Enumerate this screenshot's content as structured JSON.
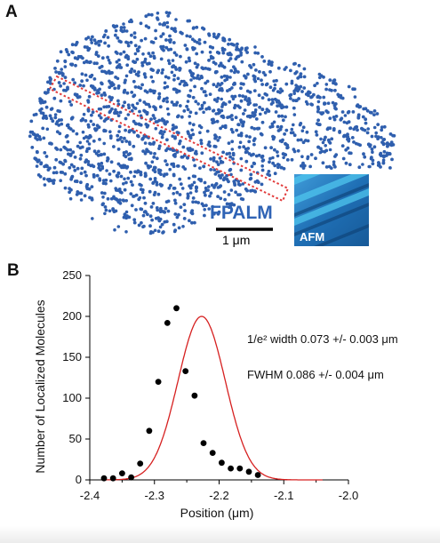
{
  "panel_a": {
    "letter": "A",
    "method_label": "FPALM",
    "scale_bar_label": "1 μm",
    "inset_label": "AFM",
    "colors": {
      "points": "#2f5fae",
      "method_label": "#2f63b5",
      "roi_box": "#e23b3b",
      "inset_bg": "#1c5f9e",
      "inset_band": "#4fc6ee"
    }
  },
  "panel_b": {
    "letter": "B",
    "annotation_width": "1/e² width 0.073 +/- 0.003 μm",
    "annotation_fwhm": "FWHM 0.086 +/- 0.004 μm"
  },
  "chart_data": {
    "type": "scatter",
    "xlabel": "Position (μm)",
    "ylabel": "Number of Localized Molecules",
    "xlim": [
      -2.4,
      -2.0
    ],
    "ylim": [
      0,
      250
    ],
    "x_ticks": [
      -2.4,
      -2.3,
      -2.2,
      -2.1,
      -2.0
    ],
    "x_tick_labels": [
      "-2.4",
      "-2.3",
      "-2.2",
      "-2.1",
      "-2.0"
    ],
    "y_ticks": [
      0,
      50,
      100,
      150,
      200,
      250
    ],
    "y_tick_labels": [
      "0",
      "50",
      "100",
      "150",
      "200",
      "250"
    ],
    "grid": false,
    "series": [
      {
        "kind": "points",
        "color": "#000000",
        "x": [
          -2.378,
          -2.364,
          -2.35,
          -2.336,
          -2.322,
          -2.308,
          -2.294,
          -2.28,
          -2.266,
          -2.252,
          -2.238,
          -2.224,
          -2.21,
          -2.196,
          -2.182,
          -2.168,
          -2.154,
          -2.14,
          -2.126,
          -2.112,
          -2.098,
          -2.084
        ],
        "y": [
          2,
          2,
          8,
          3,
          20,
          60,
          120,
          192,
          210,
          133,
          103,
          45,
          33,
          21,
          14,
          14,
          10,
          6,
          0,
          0,
          0,
          0
        ]
      },
      {
        "kind": "gaussian_fit",
        "color": "#d62020",
        "amplitude": 200,
        "center": -2.227,
        "fwhm": 0.086,
        "baseline": 0,
        "x_range": [
          -2.38,
          -2.04
        ]
      }
    ]
  }
}
